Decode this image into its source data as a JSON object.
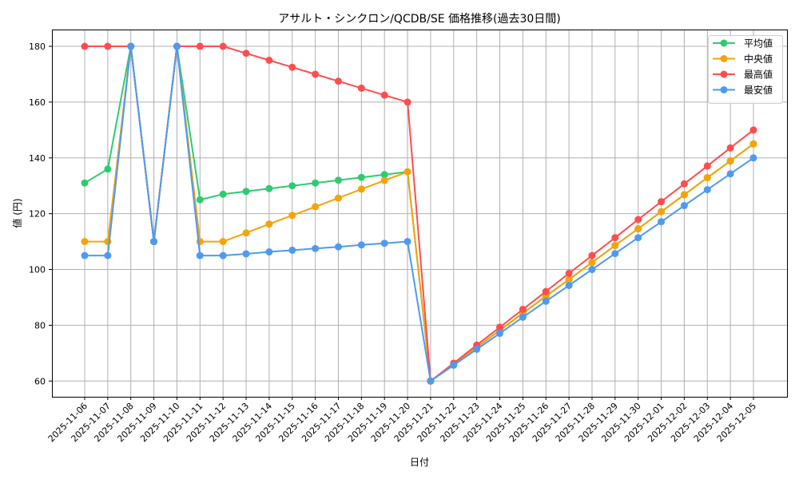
{
  "chart_data": {
    "type": "line",
    "title": "アサルト・シンクロン/QCDB/SE 価格推移(過去30日間)",
    "xlabel": "日付",
    "ylabel": "値 (円)",
    "ylim": [
      54.4,
      186
    ],
    "yticks": [
      60,
      80,
      100,
      120,
      140,
      160,
      180
    ],
    "grid": true,
    "legend_position": "upper right",
    "categories": [
      "2025-11-06",
      "2025-11-07",
      "2025-11-08",
      "2025-11-09",
      "2025-11-10",
      "2025-11-11",
      "2025-11-12",
      "2025-11-13",
      "2025-11-14",
      "2025-11-15",
      "2025-11-16",
      "2025-11-17",
      "2025-11-18",
      "2025-11-19",
      "2025-11-20",
      "2025-11-21",
      "2025-11-22",
      "2025-11-23",
      "2025-11-24",
      "2025-11-25",
      "2025-11-26",
      "2025-11-27",
      "2025-11-28",
      "2025-11-29",
      "2025-11-30",
      "2025-12-01",
      "2025-12-02",
      "2025-12-03",
      "2025-12-04",
      "2025-12-05"
    ],
    "series": [
      {
        "name": "平均値",
        "color": "#2ecc71",
        "values": [
          131,
          136,
          180,
          110,
          180,
          125,
          127,
          128,
          129,
          130,
          131,
          132,
          133,
          134,
          135,
          60,
          66.1,
          72.1,
          78.2,
          84.3,
          90.4,
          96.4,
          102.5,
          108.6,
          114.6,
          120.7,
          126.8,
          132.9,
          138.9,
          145
        ]
      },
      {
        "name": "中央値",
        "color": "#f5a30a",
        "values": [
          110,
          110,
          180,
          110,
          180,
          110,
          110,
          113.1,
          116.3,
          119.4,
          122.5,
          125.6,
          128.8,
          131.9,
          135,
          60,
          66.1,
          72.1,
          78.2,
          84.3,
          90.4,
          96.4,
          102.5,
          108.6,
          114.6,
          120.7,
          126.8,
          132.9,
          138.9,
          145
        ]
      },
      {
        "name": "最高値",
        "color": "#ff4d4d",
        "values": [
          180,
          180,
          180,
          110,
          180,
          180,
          180,
          177.5,
          175,
          172.5,
          170,
          167.5,
          165,
          162.5,
          160,
          60,
          66.4,
          72.9,
          79.3,
          85.7,
          92.1,
          98.6,
          105,
          111.4,
          117.9,
          124.3,
          130.7,
          137.1,
          143.6,
          150
        ]
      },
      {
        "name": "最安値",
        "color": "#4e9af1",
        "values": [
          105,
          105,
          180,
          110,
          180,
          105,
          105,
          105.6,
          106.3,
          106.9,
          107.5,
          108.1,
          108.8,
          109.4,
          110,
          60,
          65.7,
          71.4,
          77.1,
          82.9,
          88.6,
          94.3,
          100,
          105.7,
          111.4,
          117.1,
          122.9,
          128.6,
          134.3,
          140
        ]
      }
    ]
  },
  "legend": {
    "items": [
      {
        "label": "平均値",
        "color": "#2ecc71"
      },
      {
        "label": "中央値",
        "color": "#f5a30a"
      },
      {
        "label": "最高値",
        "color": "#ff4d4d"
      },
      {
        "label": "最安値",
        "color": "#4e9af1"
      }
    ]
  }
}
